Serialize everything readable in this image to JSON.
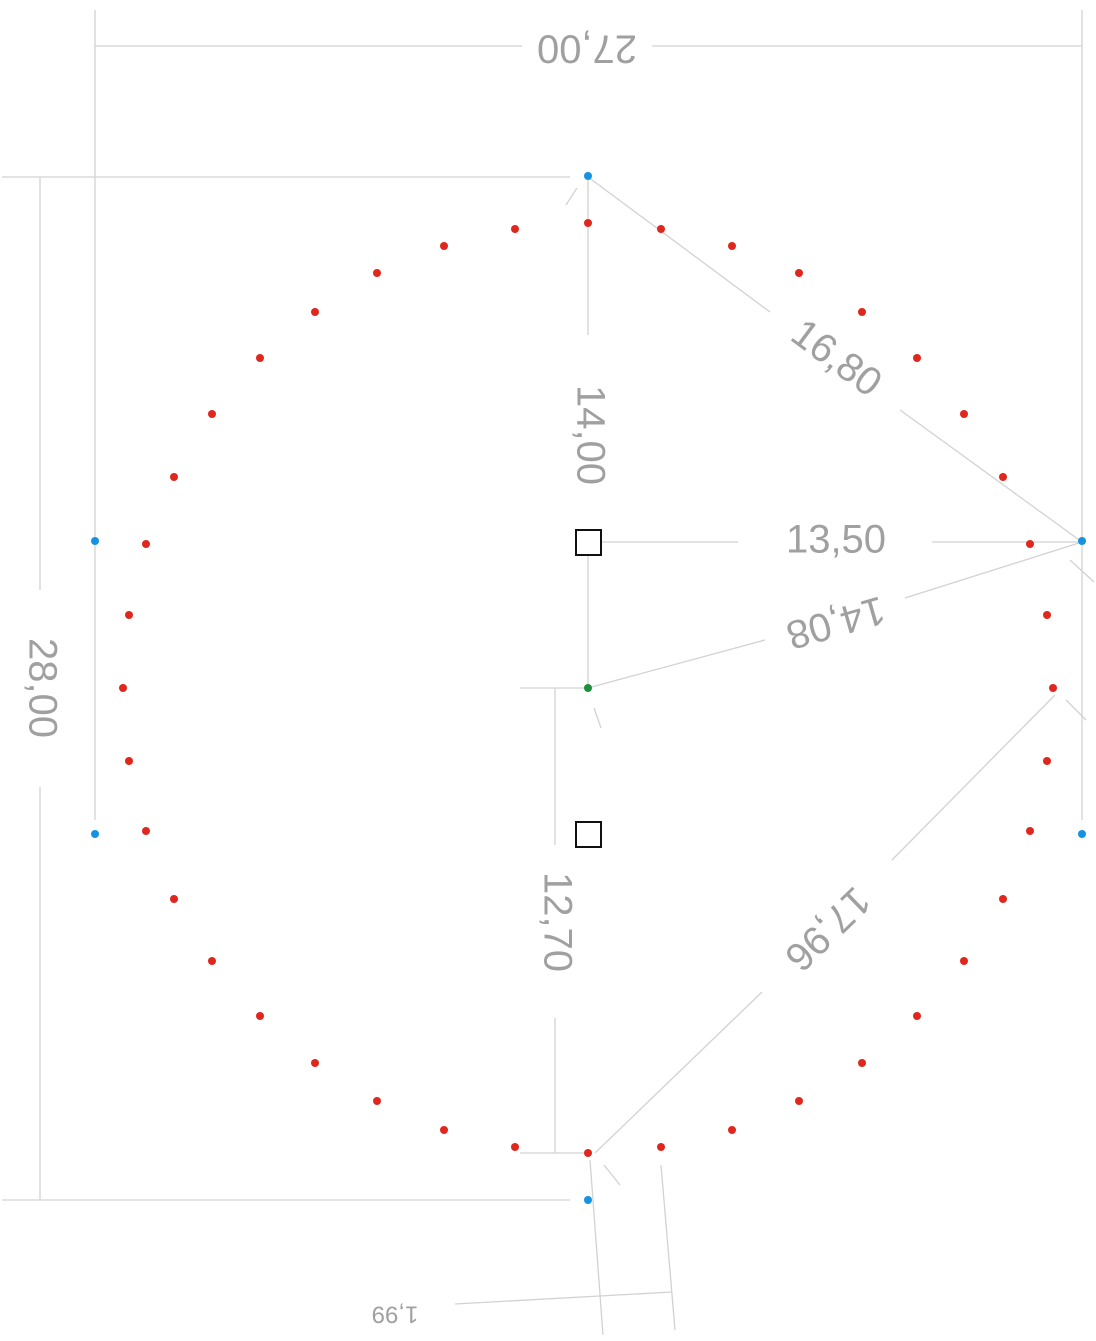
{
  "dimensions": {
    "width": "27,00",
    "height": "28,00",
    "diagonal_upper": "16,80",
    "radius_horizontal": "13,50",
    "radius_vertical": "14,00",
    "diagonal_center": "14,08",
    "lower_vertical": "12,70",
    "diagonal_lower": "17,96",
    "small_offset": "1,99"
  },
  "colors": {
    "perimeter_point": "#e0271e",
    "anchor_point": "#1592e0",
    "center_point": "#1e8f3a",
    "dimension_line": "#d2d2d2",
    "dimension_text": "#a0a0a0",
    "marker_stroke": "#111111"
  }
}
